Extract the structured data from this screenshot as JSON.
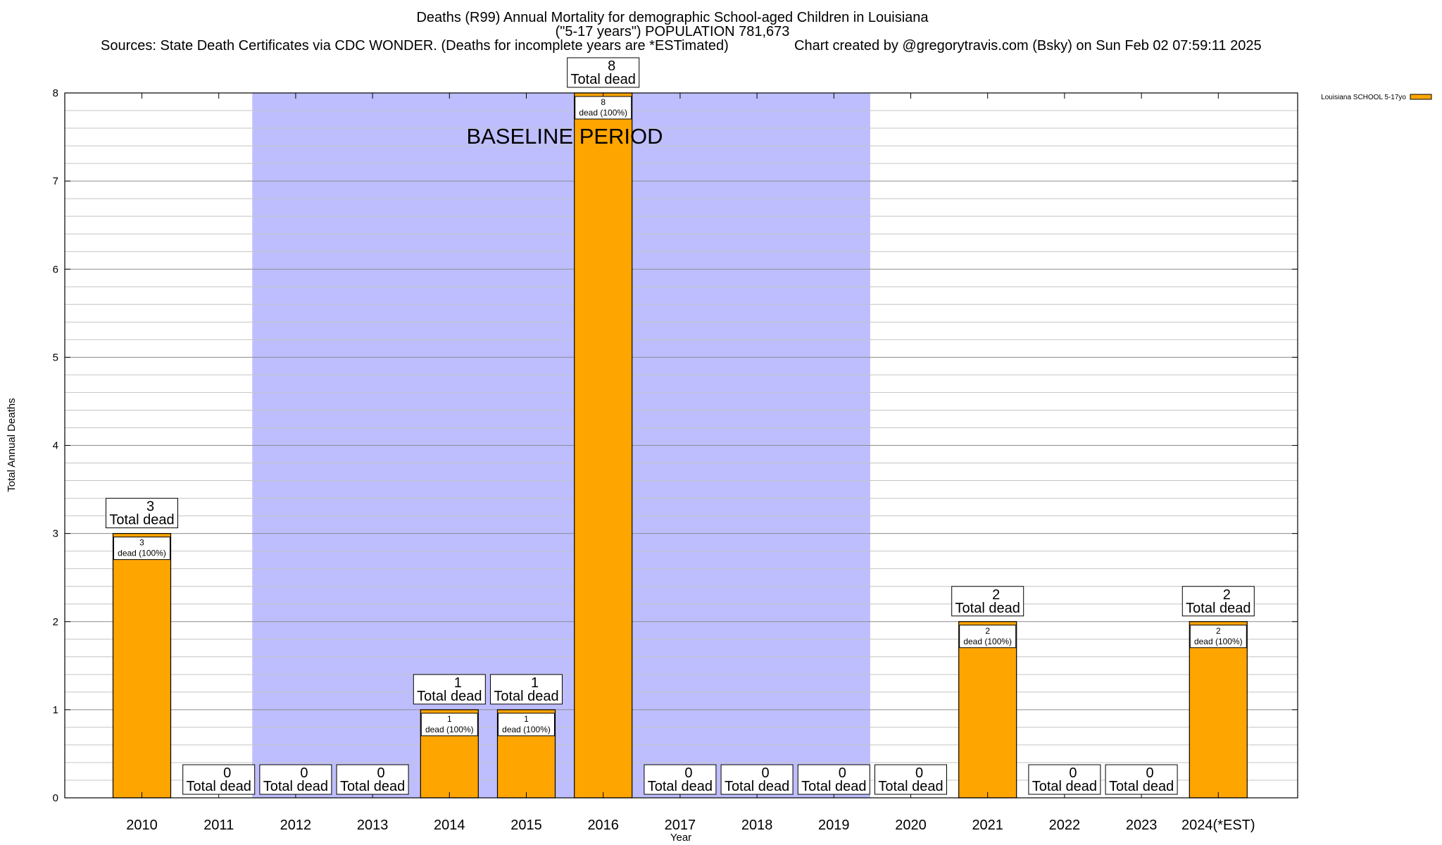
{
  "chart_data": {
    "type": "bar",
    "title_lines": [
      "Deaths (R99) Annual Mortality for demographic School-aged Children in Louisiana",
      "(\"5-17 years\") POPULATION 781,673",
      "Sources: State Death Certificates via CDC WONDER. (Deaths for incomplete years are *ESTimated)",
      "Chart created by @gregorytravis.com (Bsky) on Sun Feb 02 07:59:11 2025"
    ],
    "xlabel": "Year",
    "ylabel": "Total Annual Deaths",
    "ylim": [
      0,
      8
    ],
    "yticks": [
      0,
      1,
      2,
      3,
      4,
      5,
      6,
      7,
      8
    ],
    "minor_step": 0.2,
    "categories": [
      "2010",
      "2011",
      "2012",
      "2013",
      "2014",
      "2015",
      "2016",
      "2017",
      "2018",
      "2019",
      "2020",
      "2021",
      "2022",
      "2023",
      "2024(*EST)"
    ],
    "series": [
      {
        "name": "Louisiana SCHOOL 5-17yo",
        "color": "#FFA500",
        "values": [
          3,
          0,
          0,
          0,
          1,
          1,
          8,
          0,
          0,
          0,
          0,
          2,
          0,
          0,
          2
        ]
      }
    ],
    "total_label": "Total dead",
    "inner_label_suffix": "dead (100%)",
    "baseline": {
      "label": "BASELINE PERIOD",
      "start_category": "2012",
      "end_category": "2019",
      "color": "#BEBEFF"
    },
    "legend": {
      "position": "top-right",
      "label": "Louisiana SCHOOL 5-17yo"
    }
  }
}
